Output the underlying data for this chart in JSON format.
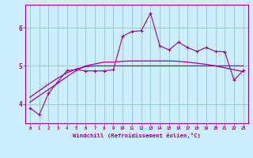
{
  "xlabel": "Windchill (Refroidissement éolien,°C)",
  "xlim": [
    -0.5,
    23.5
  ],
  "ylim": [
    3.5,
    6.6
  ],
  "yticks": [
    4,
    5,
    6
  ],
  "xticks": [
    0,
    1,
    2,
    3,
    4,
    5,
    6,
    7,
    8,
    9,
    10,
    11,
    12,
    13,
    14,
    15,
    16,
    17,
    18,
    19,
    20,
    21,
    22,
    23
  ],
  "bg_color": "#cceeff",
  "line_color": "#990099",
  "grid_color": "#99cccc",
  "data_y": [
    3.9,
    3.72,
    4.28,
    4.58,
    4.88,
    4.9,
    4.87,
    4.87,
    4.87,
    4.9,
    5.78,
    5.9,
    5.92,
    6.38,
    5.52,
    5.42,
    5.62,
    5.48,
    5.38,
    5.48,
    5.38,
    5.37,
    4.63,
    4.88
  ],
  "linear_y": [
    4.05,
    4.22,
    4.38,
    4.55,
    4.72,
    4.88,
    5.0,
    5.05,
    5.1,
    5.1,
    5.12,
    5.13,
    5.13,
    5.13,
    5.13,
    5.13,
    5.12,
    5.1,
    5.07,
    5.04,
    5.0,
    4.95,
    4.9,
    4.85
  ],
  "flat_y": [
    4.18,
    4.35,
    4.52,
    4.68,
    4.82,
    4.92,
    4.98,
    5.0,
    5.0,
    5.0,
    5.0,
    5.0,
    5.0,
    5.0,
    5.0,
    5.0,
    5.0,
    5.0,
    5.0,
    5.0,
    5.0,
    5.0,
    5.0,
    5.0
  ]
}
